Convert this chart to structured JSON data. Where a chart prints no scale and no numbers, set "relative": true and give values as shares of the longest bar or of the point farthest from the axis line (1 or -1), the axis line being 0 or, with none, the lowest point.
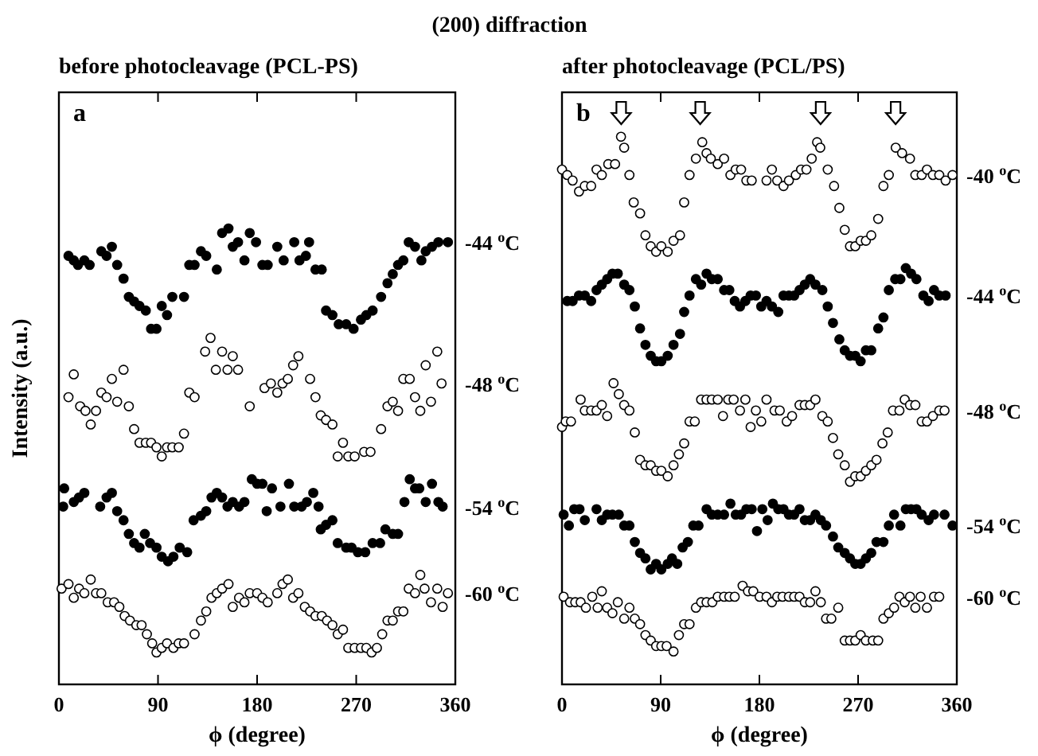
{
  "chart_data": [
    {
      "type": "scatter",
      "title": "(200) diffraction",
      "subtitle": "before photocleavage (PCL-PS)",
      "ylabel": "Intensity (a.u.)",
      "xlabel": "ϕ (degree)",
      "annotations": [
        "a"
      ],
      "relative": true,
      "marker": "circle",
      "xlim": [
        0,
        360
      ],
      "xticks": [
        0,
        90,
        180,
        270,
        360
      ],
      "series": [
        {
          "name": "-44 $^{o}$C",
          "color": "#000000",
          "x": [
            8.7,
            13.5,
            17.3,
            23.1,
            27.9,
            38.5,
            43.3,
            48.1,
            52.9,
            58.7,
            63.5,
            68.3,
            73.2,
            78.9,
            83.7,
            88.6,
            93.4,
            98.2,
            103.0,
            113.6,
            118.4,
            123.2,
            129.0,
            133.8,
            143.4,
            148.2,
            154.0,
            157.9,
            162.7,
            168.5,
            173.3,
            179.0,
            184.8,
            189.6,
            198.3,
            204.1,
            213.7,
            218.5,
            224.3,
            227.2,
            233.0,
            238.7,
            242.6,
            248.4,
            254.1,
            260.9,
            267.6,
            274.3,
            279.2,
            284.9,
            292.6,
            298.4,
            303.2,
            308.0,
            312.8,
            317.7,
            323.4,
            329.2,
            333.1,
            338.8,
            344.6,
            353.3
          ],
          "values": [
            0.94,
            0.93,
            0.92,
            0.93,
            0.92,
            0.95,
            0.94,
            0.96,
            0.92,
            0.89,
            0.85,
            0.84,
            0.83,
            0.82,
            0.78,
            0.78,
            0.83,
            0.81,
            0.85,
            0.85,
            0.92,
            0.92,
            0.95,
            0.94,
            0.91,
            0.99,
            1.0,
            0.96,
            0.97,
            0.93,
            0.99,
            0.97,
            0.92,
            0.92,
            0.96,
            0.93,
            0.97,
            0.93,
            0.94,
            0.97,
            0.91,
            0.91,
            0.82,
            0.81,
            0.79,
            0.79,
            0.78,
            0.8,
            0.81,
            0.82,
            0.85,
            0.88,
            0.9,
            0.92,
            0.93,
            0.97,
            0.96,
            0.93,
            0.95,
            0.96,
            0.97,
            0.97
          ]
        },
        {
          "name": "-48 $^{o}$C",
          "color": "#ffffff",
          "x": [
            8.7,
            13.5,
            19.3,
            24.1,
            28.9,
            33.7,
            38.5,
            43.3,
            48.1,
            52.9,
            58.7,
            63.5,
            68.3,
            73.2,
            78.9,
            83.7,
            88.6,
            93.4,
            98.2,
            103.0,
            108.8,
            113.6,
            118.4,
            123.2,
            132.8,
            137.7,
            142.5,
            148.2,
            153.1,
            157.9,
            162.7,
            173.3,
            186.7,
            192.5,
            198.3,
            203.1,
            207.9,
            212.7,
            217.5,
            228.1,
            233.0,
            237.8,
            242.6,
            248.4,
            253.2,
            258.0,
            262.8,
            268.6,
            277.2,
            283.0,
            292.6,
            298.4,
            303.2,
            308.0,
            312.8,
            318.6,
            323.4,
            328.2,
            333.1,
            337.9,
            343.6,
            347.5
          ],
          "values": [
            0.63,
            0.68,
            0.61,
            0.6,
            0.57,
            0.6,
            0.64,
            0.63,
            0.67,
            0.62,
            0.69,
            0.61,
            0.56,
            0.53,
            0.53,
            0.53,
            0.52,
            0.5,
            0.52,
            0.52,
            0.52,
            0.55,
            0.64,
            0.63,
            0.73,
            0.76,
            0.69,
            0.73,
            0.69,
            0.72,
            0.69,
            0.61,
            0.65,
            0.66,
            0.64,
            0.66,
            0.67,
            0.7,
            0.72,
            0.67,
            0.63,
            0.59,
            0.58,
            0.57,
            0.5,
            0.53,
            0.5,
            0.5,
            0.51,
            0.51,
            0.56,
            0.61,
            0.62,
            0.6,
            0.67,
            0.67,
            0.63,
            0.6,
            0.7,
            0.62,
            0.73,
            0.66
          ]
        },
        {
          "name": "-54 $^{o}$C",
          "color": "#000000",
          "x": [
            3.9,
            4.8,
            13.5,
            18.3,
            23.1,
            37.5,
            43.3,
            48.1,
            52.9,
            58.7,
            63.5,
            68.3,
            73.2,
            78.0,
            82.8,
            88.6,
            93.4,
            99.1,
            104.0,
            109.7,
            116.5,
            122.3,
            129.0,
            133.8,
            138.6,
            143.4,
            148.2,
            153.1,
            157.9,
            163.6,
            168.5,
            175.2,
            180.0,
            184.8,
            188.7,
            193.5,
            201.2,
            208.9,
            213.7,
            220.4,
            225.2,
            231.0,
            235.8,
            237.8,
            242.6,
            248.4,
            253.2,
            260.9,
            265.7,
            271.5,
            278.2,
            284.9,
            291.7,
            296.5,
            303.2,
            308.0,
            313.8,
            318.6,
            323.4,
            327.3,
            333.1,
            338.8,
            344.6,
            348.5
          ],
          "values": [
            0.39,
            0.43,
            0.4,
            0.41,
            0.42,
            0.39,
            0.41,
            0.42,
            0.38,
            0.36,
            0.33,
            0.31,
            0.3,
            0.33,
            0.31,
            0.3,
            0.28,
            0.27,
            0.28,
            0.3,
            0.29,
            0.36,
            0.37,
            0.38,
            0.41,
            0.42,
            0.41,
            0.39,
            0.4,
            0.39,
            0.4,
            0.45,
            0.44,
            0.44,
            0.38,
            0.43,
            0.39,
            0.44,
            0.39,
            0.39,
            0.4,
            0.42,
            0.39,
            0.34,
            0.35,
            0.36,
            0.31,
            0.3,
            0.3,
            0.29,
            0.29,
            0.31,
            0.31,
            0.34,
            0.33,
            0.33,
            0.4,
            0.45,
            0.43,
            0.43,
            0.4,
            0.44,
            0.4,
            0.39
          ]
        },
        {
          "name": "-60 $^{o}$C",
          "color": "#ffffff",
          "x": [
            2.4,
            8.7,
            13.5,
            18.3,
            23.1,
            28.9,
            33.7,
            38.5,
            44.3,
            50.1,
            54.9,
            59.7,
            64.5,
            70.3,
            75.1,
            79.9,
            84.7,
            88.6,
            93.4,
            98.2,
            104.0,
            108.8,
            113.6,
            123.2,
            129.0,
            133.8,
            138.6,
            143.4,
            148.2,
            154.0,
            157.9,
            163.6,
            168.5,
            173.3,
            180.0,
            184.8,
            189.6,
            198.3,
            203.1,
            207.9,
            212.7,
            217.5,
            223.3,
            228.1,
            233.0,
            238.7,
            243.5,
            248.4,
            253.2,
            258.0,
            262.8,
            268.6,
            274.3,
            279.2,
            284.0,
            288.8,
            293.6,
            298.4,
            303.2,
            308.0,
            312.8,
            317.7,
            323.4,
            328.2,
            332.1,
            337.9,
            343.6,
            348.5,
            353.3
          ],
          "values": [
            0.21,
            0.22,
            0.19,
            0.21,
            0.2,
            0.23,
            0.2,
            0.2,
            0.18,
            0.18,
            0.17,
            0.15,
            0.14,
            0.13,
            0.13,
            0.11,
            0.09,
            0.07,
            0.08,
            0.09,
            0.08,
            0.09,
            0.09,
            0.11,
            0.14,
            0.16,
            0.19,
            0.2,
            0.21,
            0.22,
            0.17,
            0.19,
            0.18,
            0.2,
            0.2,
            0.19,
            0.18,
            0.2,
            0.22,
            0.23,
            0.19,
            0.2,
            0.17,
            0.16,
            0.15,
            0.15,
            0.14,
            0.13,
            0.11,
            0.12,
            0.08,
            0.08,
            0.08,
            0.08,
            0.07,
            0.08,
            0.11,
            0.14,
            0.14,
            0.16,
            0.16,
            0.21,
            0.2,
            0.24,
            0.21,
            0.18,
            0.21,
            0.17,
            0.2
          ]
        }
      ]
    },
    {
      "type": "scatter",
      "subtitle": "after photocleavage (PCL/PS)",
      "xlabel": "ϕ (degree)",
      "annotations": [
        "b"
      ],
      "relative": true,
      "marker": "circle",
      "xlim": [
        0,
        360
      ],
      "xticks": [
        0,
        90,
        180,
        270,
        360
      ],
      "series": [
        {
          "name": "-40 $^{o}$C",
          "color": "#ffffff",
          "x": [
            0.0,
            4.8,
            9.7,
            15.5,
            20.8,
            26.6,
            31.5,
            36.3,
            42.2,
            48.4,
            53.8,
            56.7,
            61.5,
            65.4,
            71.2,
            76.1,
            80.9,
            85.8,
            90.6,
            96.4,
            101.7,
            107.6,
            111.4,
            116.3,
            122.1,
            127.9,
            131.8,
            135.7,
            142.0,
            147.8,
            153.6,
            158.4,
            163.3,
            168.1,
            173.0,
            186.5,
            191.4,
            196.2,
            202.0,
            206.9,
            213.2,
            218.0,
            222.9,
            227.7,
            232.6,
            235.5,
            242.3,
            248.1,
            252.9,
            257.8,
            262.6,
            267.4,
            272.3,
            277.1,
            282.0,
            288.3,
            293.1,
            298.0,
            304.3,
            310.1,
            317.3,
            322.2,
            328.0,
            332.8,
            338.2,
            344.0,
            349.8,
            356.1
          ],
          "values": [
            0.94,
            0.93,
            0.92,
            0.9,
            0.91,
            0.91,
            0.94,
            0.93,
            0.95,
            0.95,
            1.0,
            0.98,
            0.93,
            0.88,
            0.86,
            0.82,
            0.8,
            0.79,
            0.8,
            0.79,
            0.81,
            0.82,
            0.88,
            0.93,
            0.96,
            0.99,
            0.97,
            0.96,
            0.95,
            0.96,
            0.93,
            0.94,
            0.94,
            0.92,
            0.92,
            0.92,
            0.94,
            0.92,
            0.91,
            0.92,
            0.93,
            0.94,
            0.94,
            0.96,
            0.99,
            0.98,
            0.94,
            0.91,
            0.87,
            0.83,
            0.8,
            0.8,
            0.81,
            0.81,
            0.82,
            0.85,
            0.91,
            0.93,
            0.98,
            0.97,
            0.96,
            0.93,
            0.93,
            0.94,
            0.93,
            0.93,
            0.92,
            0.93
          ]
        },
        {
          "name": "-44 $^{o}$C",
          "color": "#000000",
          "x": [
            4.8,
            9.7,
            15.5,
            20.8,
            26.6,
            31.5,
            36.3,
            41.2,
            46.0,
            50.9,
            56.7,
            61.5,
            66.4,
            71.2,
            76.1,
            80.9,
            85.8,
            90.6,
            96.4,
            101.7,
            107.6,
            111.4,
            116.3,
            122.1,
            126.9,
            131.8,
            136.6,
            142.0,
            147.8,
            152.6,
            157.5,
            162.3,
            167.2,
            172.0,
            176.8,
            181.7,
            186.5,
            191.4,
            197.2,
            202.0,
            206.9,
            211.7,
            216.6,
            221.4,
            226.3,
            231.1,
            237.4,
            242.3,
            247.1,
            252.9,
            257.8,
            262.6,
            267.4,
            272.3,
            277.1,
            282.0,
            288.3,
            293.1,
            298.0,
            303.8,
            308.6,
            313.5,
            318.3,
            323.2,
            329.5,
            334.3,
            339.2,
            344.0,
            349.8
          ],
          "values": [
            0.7,
            0.7,
            0.71,
            0.71,
            0.7,
            0.72,
            0.73,
            0.74,
            0.75,
            0.75,
            0.73,
            0.72,
            0.69,
            0.65,
            0.62,
            0.6,
            0.59,
            0.59,
            0.6,
            0.62,
            0.64,
            0.68,
            0.71,
            0.74,
            0.73,
            0.75,
            0.74,
            0.74,
            0.72,
            0.72,
            0.7,
            0.69,
            0.7,
            0.71,
            0.71,
            0.69,
            0.7,
            0.69,
            0.68,
            0.71,
            0.71,
            0.71,
            0.72,
            0.73,
            0.74,
            0.73,
            0.72,
            0.69,
            0.66,
            0.63,
            0.61,
            0.6,
            0.6,
            0.59,
            0.61,
            0.61,
            0.65,
            0.67,
            0.72,
            0.74,
            0.74,
            0.76,
            0.75,
            0.74,
            0.71,
            0.7,
            0.72,
            0.71,
            0.71
          ]
        },
        {
          "name": "-48 $^{o}$C",
          "color": "#ffffff",
          "x": [
            0.0,
            3.4,
            8.2,
            17.0,
            20.8,
            26.6,
            31.5,
            36.3,
            41.2,
            47.0,
            51.8,
            56.7,
            61.5,
            66.4,
            71.2,
            76.1,
            80.9,
            85.8,
            90.6,
            96.4,
            101.7,
            106.6,
            111.4,
            116.3,
            121.1,
            126.9,
            131.8,
            136.6,
            142.0,
            146.8,
            151.6,
            156.5,
            162.3,
            167.2,
            172.0,
            176.8,
            181.7,
            186.5,
            193.8,
            198.6,
            204.9,
            209.8,
            216.6,
            221.4,
            226.3,
            231.1,
            237.4,
            242.3,
            247.1,
            251.9,
            257.8,
            262.6,
            267.4,
            272.3,
            277.1,
            282.0,
            286.8,
            292.2,
            297.0,
            301.8,
            307.7,
            312.5,
            317.3,
            322.2,
            328.0,
            332.8,
            338.2,
            344.0,
            348.8
          ],
          "values": [
            0.47,
            0.48,
            0.48,
            0.52,
            0.5,
            0.5,
            0.5,
            0.51,
            0.49,
            0.55,
            0.53,
            0.51,
            0.5,
            0.46,
            0.41,
            0.4,
            0.4,
            0.39,
            0.39,
            0.38,
            0.4,
            0.42,
            0.44,
            0.48,
            0.48,
            0.52,
            0.52,
            0.52,
            0.52,
            0.49,
            0.52,
            0.52,
            0.5,
            0.52,
            0.47,
            0.5,
            0.48,
            0.52,
            0.5,
            0.5,
            0.48,
            0.49,
            0.51,
            0.51,
            0.51,
            0.52,
            0.49,
            0.48,
            0.45,
            0.42,
            0.4,
            0.37,
            0.38,
            0.38,
            0.39,
            0.4,
            0.41,
            0.44,
            0.46,
            0.5,
            0.5,
            0.52,
            0.51,
            0.51,
            0.48,
            0.48,
            0.49,
            0.5,
            0.5
          ]
        },
        {
          "name": "-54 $^{o}$C",
          "color": "#000000",
          "x": [
            1.5,
            6.3,
            11.1,
            16.0,
            20.8,
            31.5,
            36.3,
            41.2,
            46.0,
            51.8,
            56.7,
            61.5,
            66.4,
            71.2,
            76.1,
            80.9,
            85.8,
            90.6,
            96.4,
            100.3,
            105.1,
            110.0,
            114.8,
            119.7,
            124.5,
            131.8,
            136.6,
            142.0,
            147.8,
            153.6,
            158.4,
            163.3,
            168.1,
            173.0,
            177.8,
            182.7,
            187.5,
            192.3,
            197.2,
            202.0,
            206.9,
            211.7,
            216.6,
            221.4,
            226.3,
            231.1,
            236.0,
            240.8,
            247.1,
            251.9,
            257.8,
            262.6,
            267.4,
            272.3,
            277.1,
            282.0,
            286.8,
            293.1,
            298.0,
            302.8,
            308.6,
            313.5,
            318.3,
            323.2,
            328.0,
            334.3,
            339.2,
            348.8,
            356.1
          ],
          "values": [
            0.31,
            0.29,
            0.32,
            0.32,
            0.3,
            0.32,
            0.3,
            0.31,
            0.31,
            0.31,
            0.29,
            0.29,
            0.26,
            0.24,
            0.23,
            0.21,
            0.22,
            0.21,
            0.22,
            0.23,
            0.22,
            0.25,
            0.26,
            0.29,
            0.29,
            0.32,
            0.31,
            0.31,
            0.31,
            0.33,
            0.31,
            0.31,
            0.32,
            0.32,
            0.28,
            0.32,
            0.3,
            0.33,
            0.32,
            0.32,
            0.31,
            0.31,
            0.32,
            0.3,
            0.3,
            0.31,
            0.3,
            0.29,
            0.27,
            0.25,
            0.24,
            0.23,
            0.22,
            0.22,
            0.23,
            0.24,
            0.26,
            0.26,
            0.29,
            0.31,
            0.29,
            0.32,
            0.32,
            0.32,
            0.31,
            0.3,
            0.31,
            0.31,
            0.29
          ]
        },
        {
          "name": "-60 $^{o}$C",
          "color": "#ffffff",
          "x": [
            1.5,
            7.3,
            12.1,
            17.0,
            21.8,
            27.6,
            32.5,
            36.3,
            41.2,
            46.0,
            50.9,
            56.7,
            61.5,
            66.4,
            71.2,
            76.1,
            80.9,
            85.8,
            90.6,
            95.4,
            101.7,
            106.6,
            111.4,
            116.3,
            122.1,
            126.9,
            131.8,
            137.1,
            142.0,
            147.8,
            152.6,
            157.5,
            164.7,
            169.6,
            174.4,
            180.2,
            186.5,
            191.4,
            196.2,
            201.1,
            206.9,
            211.7,
            216.6,
            221.4,
            226.3,
            231.1,
            236.0,
            240.8,
            245.6,
            251.9,
            257.8,
            262.6,
            267.4,
            272.3,
            277.1,
            283.4,
            288.3,
            293.1,
            298.0,
            302.8,
            307.7,
            312.5,
            317.3,
            322.2,
            327.0,
            332.8,
            339.2,
            344.0
          ],
          "values": [
            0.16,
            0.15,
            0.15,
            0.15,
            0.14,
            0.16,
            0.14,
            0.17,
            0.14,
            0.13,
            0.15,
            0.12,
            0.14,
            0.12,
            0.11,
            0.09,
            0.08,
            0.07,
            0.07,
            0.07,
            0.06,
            0.09,
            0.11,
            0.11,
            0.14,
            0.15,
            0.15,
            0.15,
            0.16,
            0.16,
            0.16,
            0.16,
            0.18,
            0.17,
            0.17,
            0.16,
            0.16,
            0.15,
            0.16,
            0.16,
            0.16,
            0.16,
            0.16,
            0.15,
            0.15,
            0.17,
            0.15,
            0.12,
            0.12,
            0.14,
            0.08,
            0.08,
            0.08,
            0.09,
            0.08,
            0.08,
            0.08,
            0.12,
            0.13,
            0.14,
            0.16,
            0.15,
            0.16,
            0.14,
            0.16,
            0.14,
            0.16,
            0.16
          ]
        }
      ]
    }
  ]
}
